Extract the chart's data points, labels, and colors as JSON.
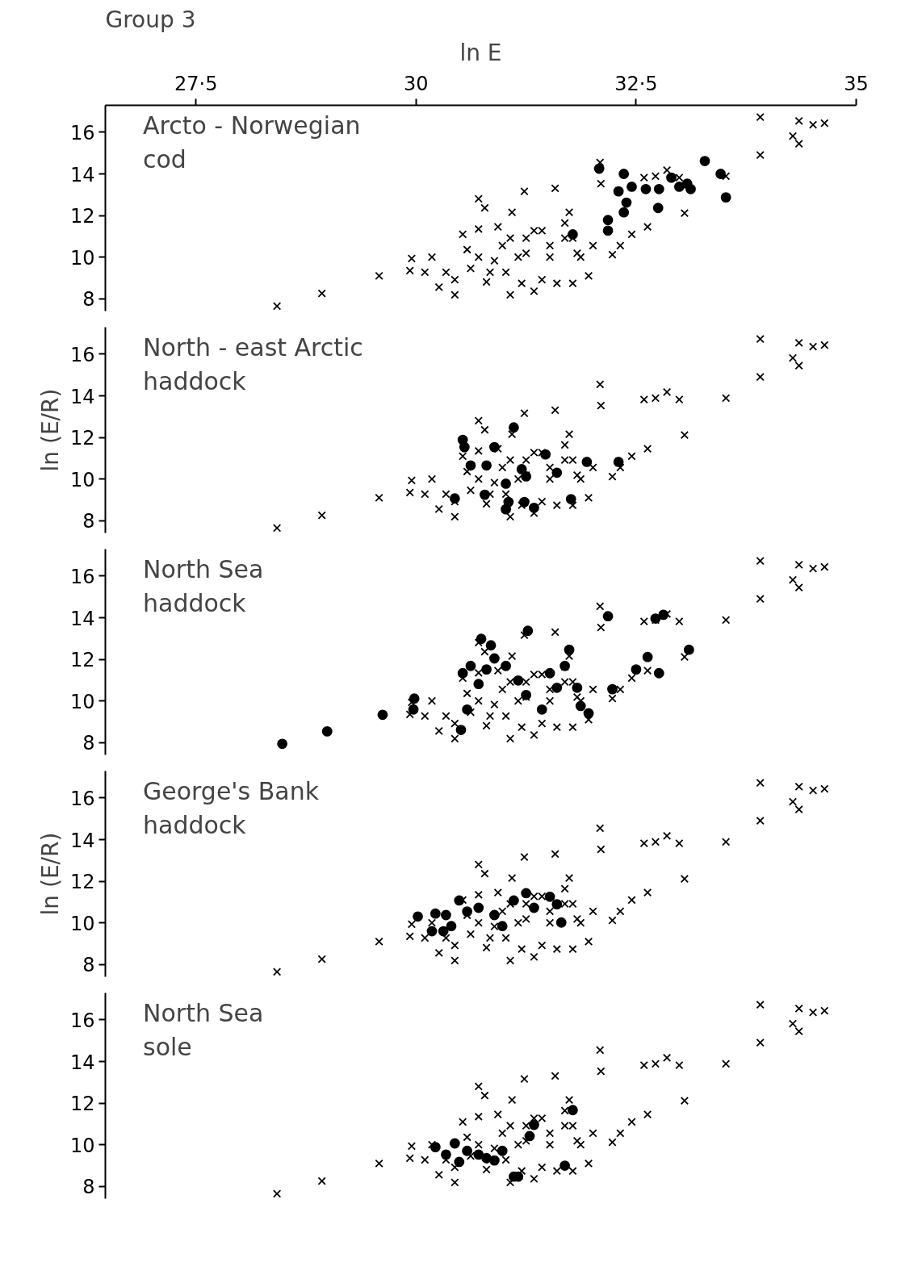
{
  "chart_data": [
    {
      "type": "scatter",
      "title": "Group 3",
      "xlabel": "ln E",
      "xlim": [
        26.47,
        35
      ],
      "xticks": [
        {
          "value": 27.5,
          "label": "27·5"
        },
        30,
        {
          "value": 32.5,
          "label": "32·5"
        },
        35
      ],
      "ylim": [
        7.4,
        17.3
      ],
      "yticks": [
        8,
        10,
        12,
        14,
        16
      ],
      "annotations": [
        "Arcto - Norwegian\n         cod"
      ],
      "series": [
        {
          "color": "#000000",
          "marker": "cross",
          "x": [
            28.42,
            28.93,
            29.58,
            29.93,
            29.95,
            30.1,
            30.18,
            30.34,
            30.44,
            30.44,
            30.58,
            30.71,
            30.71,
            30.8,
            30.89,
            30.98,
            31.07,
            31.16,
            31.25,
            31.34,
            31.43,
            31.52,
            31.69,
            31.78,
            31.83,
            32.01,
            31.07,
            31.2,
            31.34,
            31.6,
            31.78,
            30.71,
            30.78,
            31.09,
            31.23,
            31.58,
            31.74,
            32.1,
            32.09,
            32.23,
            32.32,
            32.45,
            32.63,
            32.59,
            32.72,
            32.85,
            32.99,
            33.05,
            33.52,
            33.91,
            33.91,
            34.28,
            34.35,
            34.35,
            34.51,
            34.64,
            30.26,
            30.62,
            30.84,
            31.02,
            31.25,
            31.52,
            31.87,
            31.96,
            30.53,
            30.93,
            31.43,
            31.69
          ],
          "values": [
            7.64,
            8.25,
            9.09,
            9.35,
            9.93,
            9.27,
            10.0,
            9.27,
            8.18,
            8.91,
            10.36,
            10.0,
            11.35,
            8.8,
            9.82,
            10.55,
            10.91,
            10.0,
            10.91,
            11.27,
            8.91,
            10.55,
            11.64,
            10.91,
            10.18,
            10.55,
            8.18,
            8.73,
            8.36,
            8.73,
            8.73,
            12.8,
            12.36,
            12.15,
            13.16,
            13.31,
            12.15,
            13.53,
            14.55,
            10.11,
            10.55,
            11.09,
            11.45,
            13.82,
            13.89,
            14.18,
            13.82,
            12.11,
            13.89,
            14.91,
            16.73,
            15.82,
            16.55,
            15.45,
            16.36,
            16.44,
            8.55,
            9.45,
            9.27,
            9.27,
            10.18,
            10.0,
            10.0,
            9.09,
            11.09,
            11.45,
            11.27,
            10.91
          ]
        },
        {
          "color": "#000000",
          "marker": "circle",
          "x": [
            32.08,
            32.36,
            32.3,
            32.45,
            32.39,
            32.36,
            32.18,
            32.18,
            32.61,
            32.75,
            32.76,
            32.9,
            32.99,
            33.08,
            33.12,
            33.28,
            33.46,
            33.52,
            31.78
          ],
          "values": [
            14.25,
            14.0,
            13.16,
            13.38,
            12.62,
            12.15,
            11.78,
            11.27,
            13.27,
            12.36,
            13.27,
            13.82,
            13.38,
            13.53,
            13.27,
            14.62,
            14.0,
            12.87,
            11.09
          ]
        }
      ]
    },
    {
      "type": "scatter",
      "ylabel": "ln (E/R)",
      "tick_labels": "y",
      "xlim": [
        26.47,
        35
      ],
      "ylim": [
        7.4,
        17.3
      ],
      "yticks": [
        8,
        10,
        12,
        14,
        16
      ],
      "annotations": [
        "North - east Arctic\n      haddock"
      ],
      "series": [
        {
          "color": "#000000",
          "marker": "cross",
          "x": [
            28.42,
            28.93,
            29.58,
            29.93,
            29.95,
            30.1,
            30.18,
            30.34,
            30.44,
            30.44,
            30.58,
            30.71,
            30.71,
            30.8,
            30.89,
            30.98,
            31.07,
            31.16,
            31.25,
            31.34,
            31.43,
            31.52,
            31.69,
            31.78,
            31.83,
            32.01,
            31.07,
            31.2,
            31.34,
            31.6,
            31.78,
            30.71,
            30.78,
            31.09,
            31.23,
            31.58,
            31.74,
            32.1,
            32.09,
            32.23,
            32.32,
            32.45,
            32.63,
            32.59,
            32.72,
            32.85,
            32.99,
            33.05,
            33.52,
            33.91,
            33.91,
            34.28,
            34.35,
            34.35,
            34.51,
            34.64,
            30.26,
            30.62,
            30.84,
            31.02,
            31.25,
            31.52,
            31.87,
            31.96,
            30.53,
            30.93,
            31.43,
            31.69
          ],
          "values": [
            7.64,
            8.25,
            9.09,
            9.35,
            9.93,
            9.27,
            10.0,
            9.27,
            8.18,
            8.91,
            10.36,
            10.0,
            11.35,
            8.8,
            9.82,
            10.55,
            10.91,
            10.0,
            10.91,
            11.27,
            8.91,
            10.55,
            11.64,
            10.91,
            10.18,
            10.55,
            8.18,
            8.73,
            8.36,
            8.73,
            8.73,
            12.8,
            12.36,
            12.15,
            13.16,
            13.31,
            12.15,
            13.53,
            14.55,
            10.11,
            10.55,
            11.09,
            11.45,
            13.82,
            13.89,
            14.18,
            13.82,
            12.11,
            13.89,
            14.91,
            16.73,
            15.82,
            16.55,
            15.45,
            16.36,
            16.44,
            8.55,
            9.45,
            9.27,
            9.27,
            10.18,
            10.0,
            10.0,
            9.09,
            11.09,
            11.45,
            11.27,
            10.91
          ]
        },
        {
          "color": "#000000",
          "marker": "circle",
          "x": [
            30.53,
            30.55,
            30.62,
            30.44,
            30.78,
            31.02,
            31.05,
            31.11,
            31.2,
            31.25,
            31.02,
            31.23,
            31.34,
            31.47,
            31.6,
            31.76,
            31.94,
            32.3,
            30.8,
            30.89
          ],
          "values": [
            11.88,
            11.53,
            10.65,
            9.06,
            9.24,
            9.77,
            8.89,
            12.48,
            10.47,
            10.12,
            8.54,
            8.89,
            8.61,
            11.18,
            10.3,
            9.03,
            10.82,
            10.82,
            10.65,
            11.53
          ]
        }
      ]
    },
    {
      "type": "scatter",
      "tick_labels": "y",
      "xlim": [
        26.47,
        35
      ],
      "ylim": [
        7.4,
        17.3
      ],
      "yticks": [
        8,
        10,
        12,
        14,
        16
      ],
      "annotations": [
        "North  Sea\n  haddock"
      ],
      "series": [
        {
          "color": "#000000",
          "marker": "cross",
          "x": [
            29.93,
            29.95,
            30.1,
            30.18,
            30.34,
            30.44,
            30.44,
            30.58,
            30.71,
            30.71,
            30.8,
            30.89,
            30.98,
            31.07,
            31.16,
            31.25,
            31.34,
            31.43,
            31.52,
            31.69,
            31.78,
            31.83,
            32.01,
            31.07,
            31.2,
            31.34,
            31.6,
            31.78,
            30.71,
            30.78,
            31.09,
            31.23,
            31.58,
            31.74,
            32.1,
            32.09,
            32.23,
            32.32,
            32.45,
            32.63,
            32.59,
            32.72,
            32.85,
            32.99,
            33.05,
            33.52,
            33.91,
            33.91,
            34.28,
            34.35,
            34.35,
            34.51,
            34.64,
            30.26,
            30.62,
            30.84,
            31.02,
            31.25,
            31.52,
            31.87,
            31.96,
            30.53,
            30.93,
            31.43,
            31.69
          ],
          "values": [
            9.35,
            9.93,
            9.27,
            10.0,
            9.27,
            8.18,
            8.91,
            10.36,
            10.0,
            11.35,
            8.8,
            9.82,
            10.55,
            10.91,
            10.0,
            10.91,
            11.27,
            8.91,
            10.55,
            11.64,
            10.91,
            10.18,
            10.55,
            8.18,
            8.73,
            8.36,
            8.73,
            8.73,
            12.8,
            12.36,
            12.15,
            13.16,
            13.31,
            12.15,
            13.53,
            14.55,
            10.11,
            10.55,
            11.09,
            11.45,
            13.82,
            13.89,
            14.18,
            13.82,
            12.11,
            13.89,
            14.91,
            16.73,
            15.82,
            16.55,
            15.45,
            16.36,
            16.44,
            8.55,
            9.45,
            9.27,
            9.27,
            10.18,
            10.0,
            10.0,
            9.09,
            11.09,
            11.45,
            11.27,
            10.91
          ]
        },
        {
          "color": "#000000",
          "marker": "circle",
          "x": [
            28.48,
            28.99,
            29.62,
            29.97,
            29.98,
            30.51,
            30.53,
            30.74,
            30.85,
            31.27,
            30.58,
            30.71,
            30.89,
            31.02,
            31.16,
            31.25,
            31.43,
            31.52,
            31.69,
            31.74,
            31.83,
            31.87,
            31.96,
            32.18,
            32.23,
            32.5,
            32.63,
            32.76,
            32.72,
            32.81,
            33.1,
            30.62,
            30.8,
            31.6
          ],
          "values": [
            7.93,
            8.53,
            9.33,
            9.58,
            10.11,
            8.6,
            11.33,
            12.98,
            12.67,
            13.37,
            9.58,
            10.81,
            12.04,
            11.68,
            10.98,
            10.28,
            9.58,
            11.33,
            11.68,
            12.46,
            10.63,
            9.75,
            9.4,
            14.07,
            10.56,
            11.51,
            12.11,
            11.33,
            13.96,
            14.14,
            12.46,
            11.68,
            11.51,
            10.63
          ]
        }
      ]
    },
    {
      "type": "scatter",
      "ylabel": "ln (E/R)",
      "tick_labels": "y",
      "xlim": [
        26.47,
        35
      ],
      "ylim": [
        7.4,
        17.3
      ],
      "yticks": [
        8,
        10,
        12,
        14,
        16
      ],
      "annotations": [
        "George's  Bank\n     haddock"
      ],
      "series": [
        {
          "color": "#000000",
          "marker": "cross",
          "x": [
            28.42,
            28.93,
            29.58,
            29.93,
            29.95,
            30.1,
            30.18,
            30.34,
            30.44,
            30.44,
            30.58,
            30.71,
            30.71,
            30.8,
            30.89,
            30.98,
            31.07,
            31.16,
            31.25,
            31.34,
            31.43,
            31.52,
            31.69,
            31.78,
            31.83,
            32.01,
            31.07,
            31.2,
            31.34,
            31.6,
            31.78,
            30.71,
            30.78,
            31.09,
            31.23,
            31.58,
            31.74,
            32.1,
            32.09,
            32.23,
            32.32,
            32.45,
            32.63,
            32.59,
            32.72,
            32.85,
            32.99,
            33.05,
            33.52,
            33.91,
            33.91,
            34.28,
            34.35,
            34.35,
            34.51,
            34.64,
            30.26,
            30.62,
            30.84,
            31.02,
            31.25,
            31.52,
            31.87,
            31.96,
            30.53,
            30.93,
            31.43,
            31.69
          ],
          "values": [
            7.64,
            8.25,
            9.09,
            9.35,
            9.93,
            9.27,
            10.0,
            9.27,
            8.18,
            8.91,
            10.36,
            10.0,
            11.35,
            8.8,
            9.82,
            10.55,
            10.91,
            10.0,
            10.91,
            11.27,
            8.91,
            10.55,
            11.64,
            10.91,
            10.18,
            10.55,
            8.18,
            8.73,
            8.36,
            8.73,
            8.73,
            12.8,
            12.36,
            12.15,
            13.16,
            13.31,
            12.15,
            13.53,
            14.55,
            10.11,
            10.55,
            11.09,
            11.45,
            13.82,
            13.89,
            14.18,
            13.82,
            12.11,
            13.89,
            14.91,
            16.73,
            15.82,
            16.55,
            15.45,
            16.36,
            16.44,
            8.55,
            9.45,
            9.27,
            9.27,
            10.18,
            10.0,
            10.0,
            9.09,
            11.09,
            11.45,
            11.27,
            10.91
          ]
        },
        {
          "color": "#000000",
          "marker": "circle",
          "x": [
            30.02,
            30.22,
            30.34,
            30.18,
            30.31,
            30.4,
            30.49,
            30.58,
            30.71,
            30.89,
            30.98,
            31.11,
            31.25,
            31.34,
            31.52,
            31.6,
            31.65
          ],
          "values": [
            10.3,
            10.44,
            10.37,
            9.59,
            9.59,
            9.84,
            11.07,
            10.54,
            10.72,
            10.37,
            9.84,
            11.07,
            11.42,
            10.72,
            11.25,
            10.89,
            10.01
          ]
        }
      ]
    },
    {
      "type": "scatter",
      "tick_labels": "y",
      "xlim": [
        26.47,
        35
      ],
      "ylim": [
        7.4,
        17.3
      ],
      "yticks": [
        8,
        10,
        12,
        14,
        16
      ],
      "annotations": [
        "North  Sea\n     sole"
      ],
      "series": [
        {
          "color": "#000000",
          "marker": "cross",
          "x": [
            28.42,
            28.93,
            29.58,
            29.93,
            29.95,
            30.1,
            30.18,
            30.34,
            30.44,
            30.44,
            30.58,
            30.71,
            30.71,
            30.8,
            30.89,
            30.98,
            31.07,
            31.16,
            31.25,
            31.34,
            31.43,
            31.52,
            31.69,
            31.78,
            31.83,
            32.01,
            31.07,
            31.2,
            31.34,
            31.6,
            31.78,
            30.71,
            30.78,
            31.09,
            31.23,
            31.58,
            31.74,
            32.1,
            32.09,
            32.23,
            32.32,
            32.45,
            32.63,
            32.59,
            32.72,
            32.85,
            32.99,
            33.05,
            33.52,
            33.91,
            33.91,
            34.28,
            34.35,
            34.35,
            34.51,
            34.64,
            30.26,
            30.62,
            30.84,
            31.02,
            31.25,
            31.52,
            31.87,
            31.96,
            30.53,
            30.93,
            31.43,
            31.69
          ],
          "values": [
            7.64,
            8.25,
            9.09,
            9.35,
            9.93,
            9.27,
            10.0,
            9.27,
            8.18,
            8.91,
            10.36,
            10.0,
            11.35,
            8.8,
            9.82,
            10.55,
            10.91,
            10.0,
            10.91,
            11.27,
            8.91,
            10.55,
            11.64,
            10.91,
            10.18,
            10.55,
            8.18,
            8.73,
            8.36,
            8.73,
            8.73,
            12.8,
            12.36,
            12.15,
            13.16,
            13.31,
            12.15,
            13.53,
            14.55,
            10.11,
            10.55,
            11.09,
            11.45,
            13.82,
            13.89,
            14.18,
            13.82,
            12.11,
            13.89,
            14.91,
            16.73,
            15.82,
            16.55,
            15.45,
            16.36,
            16.44,
            8.55,
            9.45,
            9.27,
            9.27,
            10.18,
            10.0,
            10.0,
            9.09,
            11.09,
            11.45,
            11.27,
            10.91
          ]
        },
        {
          "color": "#000000",
          "marker": "circle",
          "x": [
            30.22,
            30.34,
            30.44,
            30.58,
            30.71,
            30.8,
            30.89,
            31.11,
            31.16,
            31.29,
            31.34,
            31.69,
            31.78,
            30.49,
            30.98
          ],
          "values": [
            9.88,
            9.52,
            10.06,
            9.7,
            9.52,
            9.35,
            9.24,
            8.46,
            8.46,
            10.41,
            10.95,
            8.99,
            11.66,
            9.17,
            9.7
          ]
        }
      ]
    }
  ]
}
